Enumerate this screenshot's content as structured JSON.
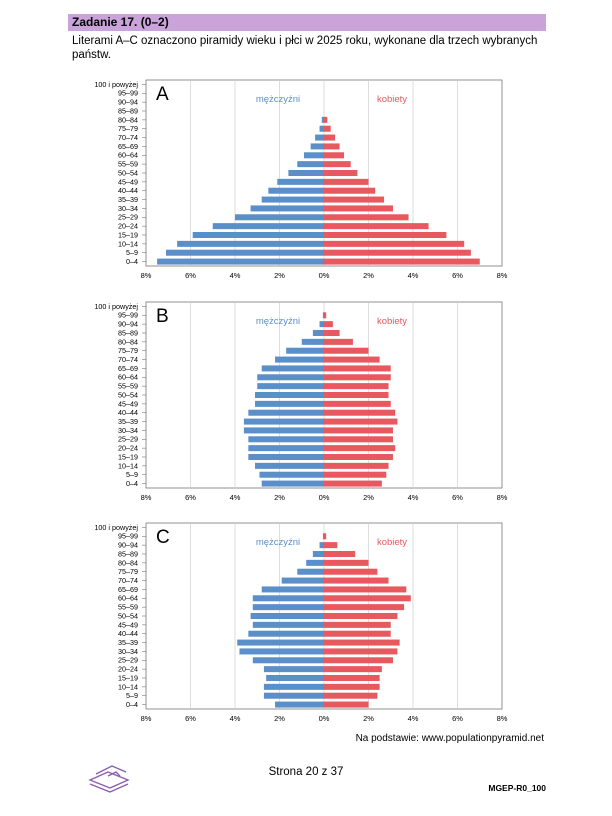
{
  "header": {
    "title": "Zadanie 17. (0–2)"
  },
  "intro": "Literami A–C oznaczono piramidy wieku i płci w 2025 roku, wykonane dla trzech wybranych państw.",
  "colors": {
    "male": "#5b8fca",
    "female": "#e8585f",
    "header_bg": "#c9a3d9"
  },
  "age_groups": [
    "0–4",
    "5–9",
    "10–14",
    "15–19",
    "20–24",
    "25–29",
    "30–34",
    "35–39",
    "40–44",
    "45–49",
    "50–54",
    "55–59",
    "60–64",
    "65–69",
    "70–74",
    "75–79",
    "80–84",
    "85–89",
    "90–94",
    "95–99",
    "100 i powyżej"
  ],
  "legend": {
    "male": "mężczyźni",
    "female": "kobiety"
  },
  "x_ticks": [
    "8%",
    "6%",
    "4%",
    "2%",
    "0%",
    "2%",
    "4%",
    "6%",
    "8%"
  ],
  "chart_data": [
    {
      "type": "bar",
      "title": "A",
      "xlim": [
        -8,
        8
      ],
      "series": [
        {
          "name": "mężczyźni",
          "values": [
            7.5,
            7.1,
            6.6,
            5.9,
            5.0,
            4.0,
            3.3,
            2.8,
            2.5,
            2.1,
            1.6,
            1.2,
            0.9,
            0.6,
            0.4,
            0.2,
            0.1,
            0.0,
            0.0,
            0.0,
            0.0
          ]
        },
        {
          "name": "kobiety",
          "values": [
            7.0,
            6.6,
            6.3,
            5.5,
            4.7,
            3.8,
            3.1,
            2.7,
            2.3,
            2.0,
            1.5,
            1.2,
            0.9,
            0.7,
            0.5,
            0.3,
            0.15,
            0.0,
            0.0,
            0.0,
            0.0
          ]
        }
      ]
    },
    {
      "type": "bar",
      "title": "B",
      "xlim": [
        -8,
        8
      ],
      "series": [
        {
          "name": "mężczyźni",
          "values": [
            2.8,
            2.9,
            3.1,
            3.4,
            3.4,
            3.4,
            3.6,
            3.6,
            3.4,
            3.1,
            3.1,
            3.0,
            3.0,
            2.8,
            2.2,
            1.7,
            1.0,
            0.5,
            0.2,
            0.05,
            0.0
          ]
        },
        {
          "name": "kobiety",
          "values": [
            2.6,
            2.8,
            2.9,
            3.1,
            3.2,
            3.1,
            3.1,
            3.3,
            3.2,
            3.0,
            2.9,
            2.9,
            3.0,
            3.0,
            2.5,
            2.0,
            1.3,
            0.7,
            0.4,
            0.1,
            0.0
          ]
        }
      ]
    },
    {
      "type": "bar",
      "title": "C",
      "xlim": [
        -8,
        8
      ],
      "series": [
        {
          "name": "mężczyźni",
          "values": [
            2.2,
            2.7,
            2.7,
            2.6,
            2.7,
            3.2,
            3.8,
            3.9,
            3.4,
            3.2,
            3.3,
            3.2,
            3.2,
            2.8,
            1.9,
            1.2,
            0.8,
            0.5,
            0.2,
            0.05,
            0.0
          ]
        },
        {
          "name": "kobiety",
          "values": [
            2.0,
            2.4,
            2.5,
            2.5,
            2.6,
            3.1,
            3.3,
            3.4,
            3.0,
            3.0,
            3.3,
            3.6,
            3.9,
            3.7,
            2.9,
            2.4,
            2.0,
            1.4,
            0.6,
            0.1,
            0.0
          ]
        }
      ]
    }
  ],
  "source": "Na podstawie: www.populationpyramid.net",
  "footer": {
    "page": "Strona 20 z 37",
    "code": "MGEP-R0_100"
  }
}
